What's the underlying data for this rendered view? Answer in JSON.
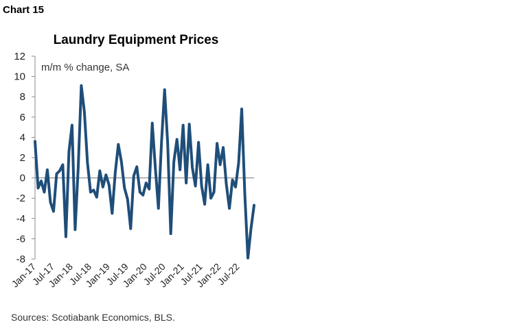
{
  "header": {
    "chart_label": "Chart 15"
  },
  "footer": {
    "source": "Sources: Scotiabank Economics, BLS."
  },
  "chart_data": {
    "type": "line",
    "title": "Laundry Equipment Prices",
    "ylabel": "m/m % change, SA",
    "xlabel": "",
    "ylim": [
      -8,
      12
    ],
    "yticks": [
      12,
      10,
      8,
      6,
      4,
      2,
      0,
      -2,
      -4,
      -6,
      -8
    ],
    "xticks": [
      "Jan-17",
      "Jul-17",
      "Jan-18",
      "Jul-18",
      "Jan-19",
      "Jul-19",
      "Jan-20",
      "Jul-20",
      "Jan-21",
      "Jul-21",
      "Jan-22",
      "Jul-22"
    ],
    "grid": false,
    "legend": "none",
    "color": "#1f4e79",
    "series": [
      {
        "start": "Jan-17",
        "frequency": "monthly",
        "values": [
          3.6,
          -1.0,
          -0.3,
          -1.4,
          0.8,
          -2.4,
          -3.3,
          0.4,
          0.7,
          1.3,
          -5.8,
          2.6,
          5.2,
          -5.1,
          1.0,
          9.1,
          6.5,
          1.5,
          -1.4,
          -1.2,
          -1.9,
          0.7,
          -0.9,
          0.3,
          -0.7,
          -3.5,
          0.5,
          3.3,
          1.6,
          -1.0,
          -2.1,
          -5.0,
          0.2,
          1.1,
          -1.4,
          -1.7,
          -0.5,
          -1.1,
          5.4,
          1.0,
          -3.0,
          3.5,
          8.7,
          3.4,
          -5.5,
          1.6,
          3.8,
          0.8,
          5.2,
          -0.5,
          5.3,
          1.0,
          -0.8,
          3.5,
          -0.8,
          -2.6,
          1.3,
          -2.0,
          -1.4,
          3.4,
          1.3,
          3.0,
          -0.6,
          -3.0,
          -0.2,
          -0.9,
          1.5,
          6.8,
          -1.6,
          -7.9,
          -5.0,
          -2.7
        ]
      }
    ]
  }
}
